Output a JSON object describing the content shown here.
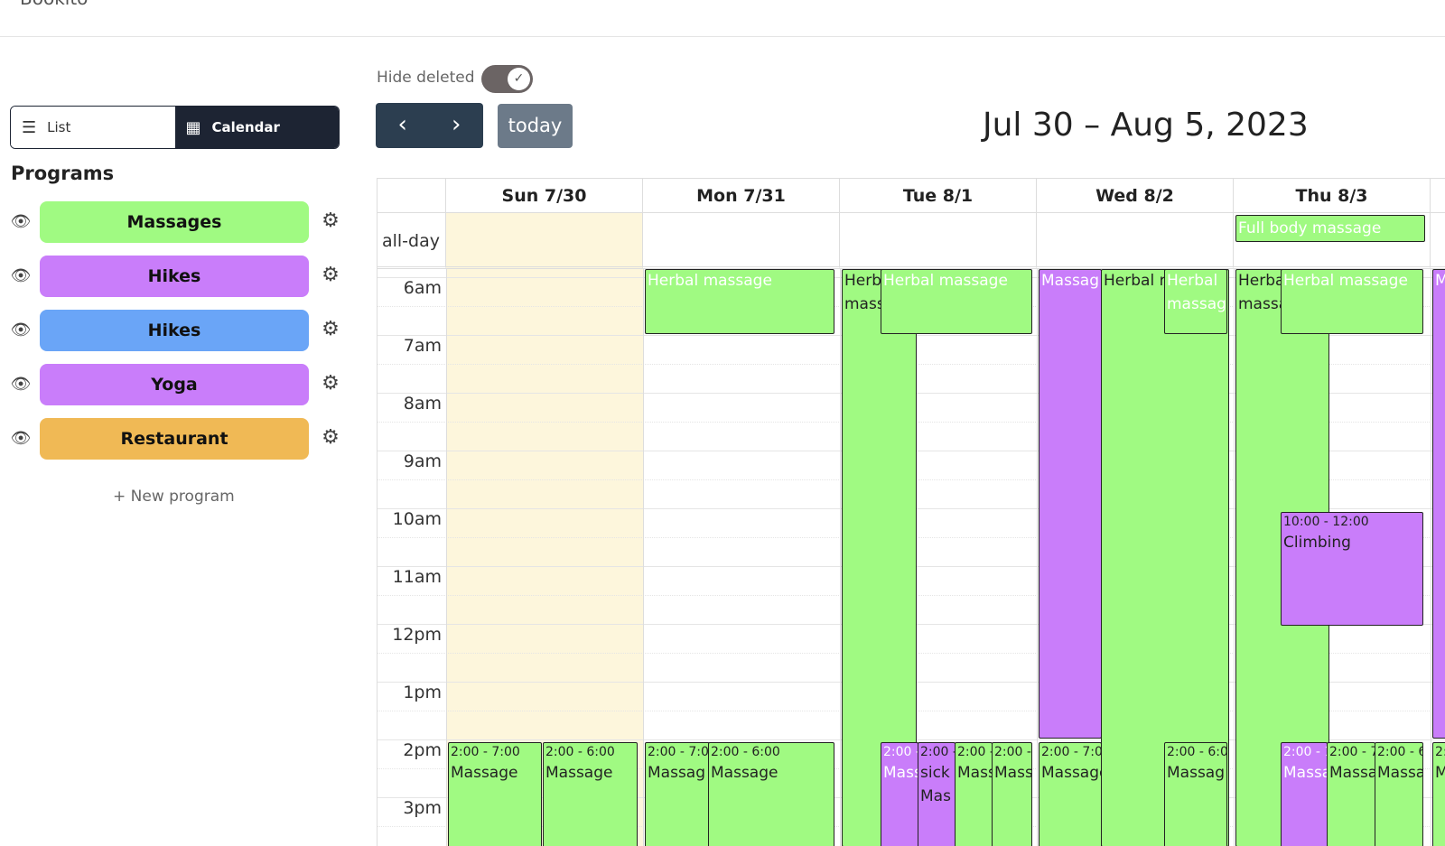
{
  "app": {
    "brand": "Bookito"
  },
  "view_toggle": {
    "list_label": "List",
    "calendar_label": "Calendar"
  },
  "programs": {
    "title": "Programs",
    "items": [
      {
        "label": "Massages",
        "color": "#a0fa82"
      },
      {
        "label": "Hikes",
        "color": "#c97dfa"
      },
      {
        "label": "Hikes",
        "color": "#6aa5f7"
      },
      {
        "label": "Yoga",
        "color": "#c97dfa"
      },
      {
        "label": "Restaurant",
        "color": "#f0b955"
      }
    ],
    "new_label": "+ New program"
  },
  "toolbar": {
    "hide_deleted_label": "Hide deleted",
    "hide_deleted_on": true,
    "prev_icon": "‹",
    "next_icon": "›",
    "today_label": "today",
    "range_title": "Jul 30 – Aug 5, 2023"
  },
  "calendar": {
    "days": [
      "Sun 7/30",
      "Mon 7/31",
      "Tue 8/1",
      "Wed 8/2",
      "Thu 8/3"
    ],
    "allday_label": "all-day",
    "allday_events": [
      {
        "day": 4,
        "title": "Full body massage"
      }
    ],
    "time_labels": [
      "6am",
      "7am",
      "8am",
      "9am",
      "10am",
      "11am",
      "12pm",
      "1pm",
      "2pm",
      "3pm"
    ],
    "events": {
      "herbal": "Herbal massage",
      "herb_short": "Herb",
      "mass_short": "mass",
      "herba_short": "Herba",
      "massa_short": "massa",
      "massag_short": "Massag",
      "herbal_r_short": "Herbal r",
      "herbal_word": "Herbal",
      "massag_lower": "massag",
      "climb_time": "10:00 - 12:00",
      "climb_title": "Climbing",
      "t_2_7": "2:00 - 7:00",
      "t_2_6": "2:00 - 6:00",
      "t_2_7c": "2:00 - 7:0",
      "t_2_6c": "2:00 - 6:0",
      "t_2_short": "2:00 -",
      "t_2_1": "2:00 - 1",
      "t_2_7x": "2:00 - 7",
      "t_2_6x": "2:00 - 6",
      "t_2": "2:",
      "massage": "Massage",
      "massag": "Massag",
      "mass": "Mass",
      "mas": "Mas",
      "massa": "Massa",
      "sick": "sick",
      "m": "M"
    }
  }
}
